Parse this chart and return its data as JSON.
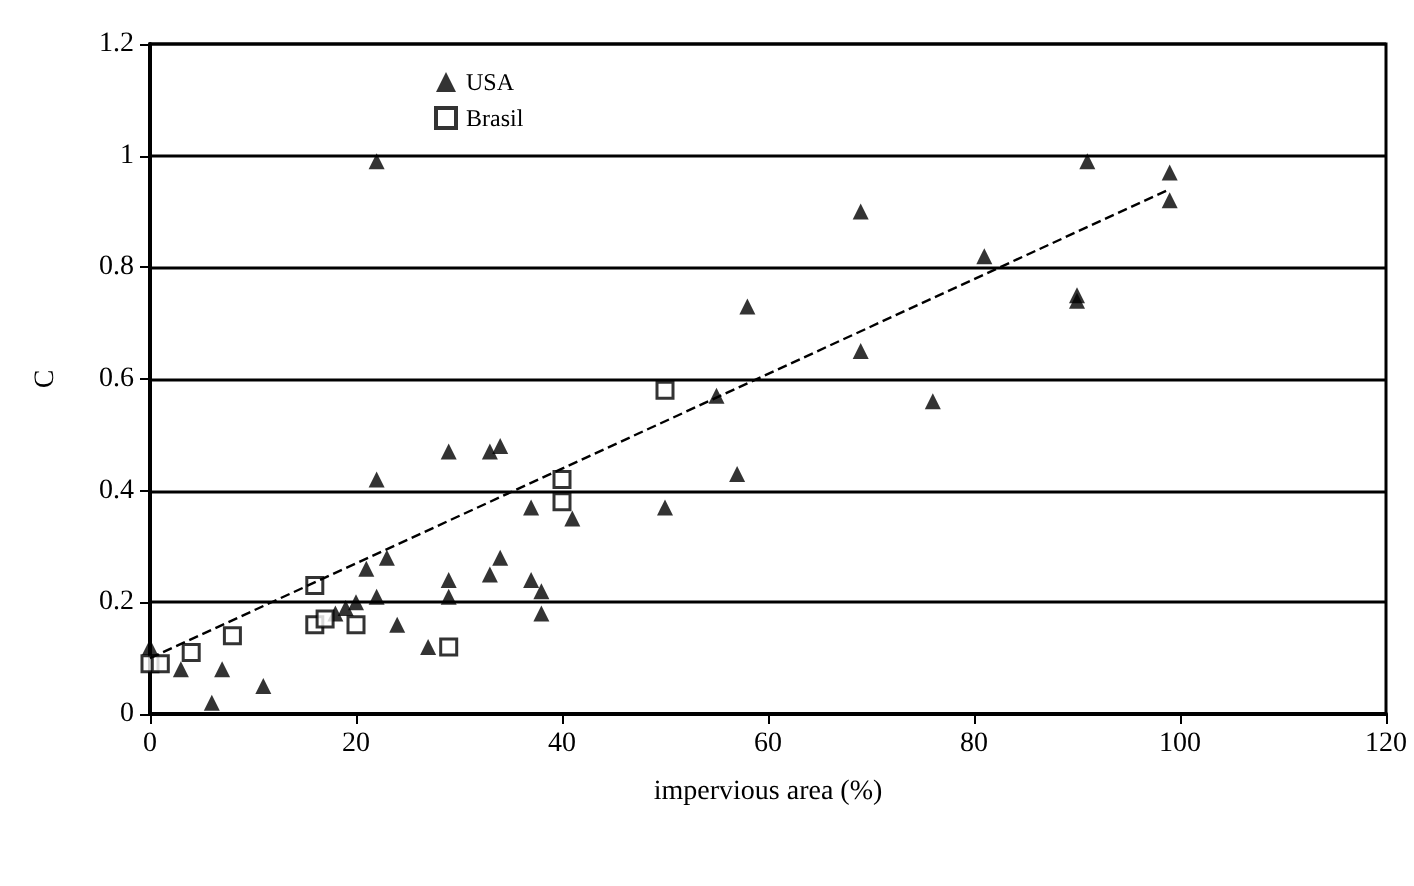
{
  "chart_data": {
    "type": "scatter",
    "xlabel": "impervious area (%)",
    "ylabel": "C",
    "xlim": [
      0,
      120
    ],
    "xticks": [
      0,
      20,
      40,
      60,
      80,
      100,
      120
    ],
    "ylim": [
      0,
      1.2
    ],
    "yticks": [
      0,
      0.2,
      0.4,
      0.6,
      0.8,
      1,
      1.2
    ],
    "grid": "y",
    "legend": "top",
    "series": [
      {
        "name": "USA",
        "color": "#000000",
        "marker": "triangle",
        "x": [
          22,
          91,
          99,
          99,
          69,
          81,
          90,
          90,
          58,
          69,
          55,
          76,
          29,
          33,
          34,
          22,
          57,
          37,
          50,
          41,
          34,
          33,
          23,
          21,
          29,
          29,
          37,
          38,
          38,
          20,
          19,
          22,
          24,
          27,
          0,
          3,
          7,
          11,
          6,
          18
        ],
        "values": [
          0.99,
          0.99,
          0.97,
          0.92,
          0.9,
          0.82,
          0.75,
          0.74,
          0.73,
          0.65,
          0.57,
          0.56,
          0.47,
          0.47,
          0.48,
          0.42,
          0.43,
          0.37,
          0.37,
          0.35,
          0.28,
          0.25,
          0.28,
          0.26,
          0.24,
          0.21,
          0.24,
          0.22,
          0.18,
          0.2,
          0.19,
          0.21,
          0.16,
          0.12,
          0.12,
          0.08,
          0.08,
          0.05,
          0.02,
          0.18
        ]
      },
      {
        "name": "Brasil",
        "color": "#000000",
        "marker": "square",
        "x": [
          0,
          1,
          4,
          8,
          16,
          16,
          17,
          20,
          29,
          40,
          40,
          50
        ],
        "values": [
          0.09,
          0.09,
          0.11,
          0.14,
          0.23,
          0.16,
          0.17,
          0.16,
          0.12,
          0.42,
          0.38,
          0.58
        ]
      },
      {
        "type": "line",
        "color": "#000000",
        "line_style": "dashed",
        "marker": "none",
        "x": [
          0,
          99
        ],
        "values": [
          0.1,
          0.94
        ]
      }
    ]
  }
}
